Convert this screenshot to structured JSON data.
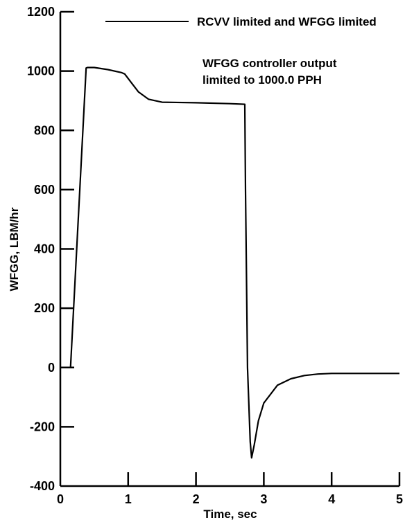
{
  "chart_data": {
    "type": "line",
    "title": "",
    "xlabel": "Time, sec",
    "ylabel": "WFGG, LBM/hr",
    "xlim": [
      0,
      5
    ],
    "ylim": [
      -400,
      1200
    ],
    "grid": false,
    "legend_position": "top-right",
    "x_ticks": [
      {
        "value": 0,
        "label": "0"
      },
      {
        "value": 1,
        "label": "1"
      },
      {
        "value": 2,
        "label": "2"
      },
      {
        "value": 3,
        "label": "3"
      },
      {
        "value": 4,
        "label": "4"
      },
      {
        "value": 5,
        "label": "5"
      }
    ],
    "y_ticks": [
      {
        "value": -400,
        "label": "-400"
      },
      {
        "value": -200,
        "label": "-200"
      },
      {
        "value": 0,
        "label": "0"
      },
      {
        "value": 200,
        "label": "200"
      },
      {
        "value": 400,
        "label": "400"
      },
      {
        "value": 600,
        "label": "600"
      },
      {
        "value": 800,
        "label": "800"
      },
      {
        "value": 1000,
        "label": "1000"
      },
      {
        "value": 1200,
        "label": "1200"
      }
    ],
    "series": [
      {
        "name": "RCVV limited and WFGG limited",
        "color": "#000000",
        "x": [
          0.1,
          0.15,
          0.38,
          0.4,
          0.5,
          0.7,
          0.9,
          0.95,
          1.05,
          1.15,
          1.3,
          1.5,
          2.0,
          2.5,
          2.72,
          2.73,
          2.76,
          2.8,
          2.82,
          2.86,
          2.92,
          3.0,
          3.2,
          3.4,
          3.6,
          3.8,
          4.0,
          4.5,
          5.0
        ],
        "y": [
          0,
          0,
          1010,
          1012,
          1012,
          1005,
          995,
          990,
          960,
          930,
          905,
          895,
          893,
          890,
          888,
          600,
          0,
          -250,
          -305,
          -260,
          -180,
          -120,
          -60,
          -38,
          -27,
          -22,
          -20,
          -20,
          -20
        ]
      }
    ],
    "annotations": [
      {
        "lines": [
          "WFGG controller output",
          "limited to 1000.0 PPH"
        ]
      }
    ]
  }
}
